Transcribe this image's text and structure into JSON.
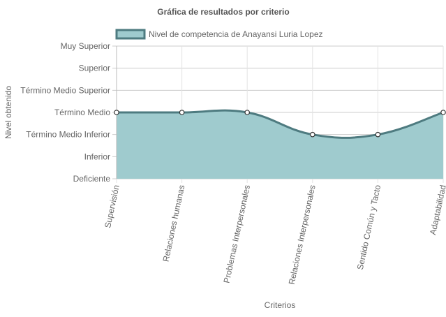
{
  "chart_data": {
    "type": "area",
    "title": "Gráfica de resultados por criterio",
    "xlabel": "Criterios",
    "ylabel": "Nivel obtenido",
    "categories": [
      "Supervisión",
      "Relaciones humanas",
      "Problemas Interpersonales",
      "Relaciones Interpersonales",
      "Sentido Común y Tacto",
      "Adaptabilidad"
    ],
    "y_levels": [
      "Deficiente",
      "Inferior",
      "Término Medio Inferior",
      "Término Medio",
      "Término Medio Superior",
      "Superior",
      "Muy Superior"
    ],
    "ylim": [
      0,
      6
    ],
    "series": [
      {
        "name": "Nivel de competencia de Anayansi Luria Lopez",
        "values": [
          3,
          3,
          3,
          2,
          2,
          3
        ],
        "fill": "#9fcbce",
        "stroke": "#4e7b80"
      }
    ],
    "grid": true,
    "legend_position": "top"
  }
}
